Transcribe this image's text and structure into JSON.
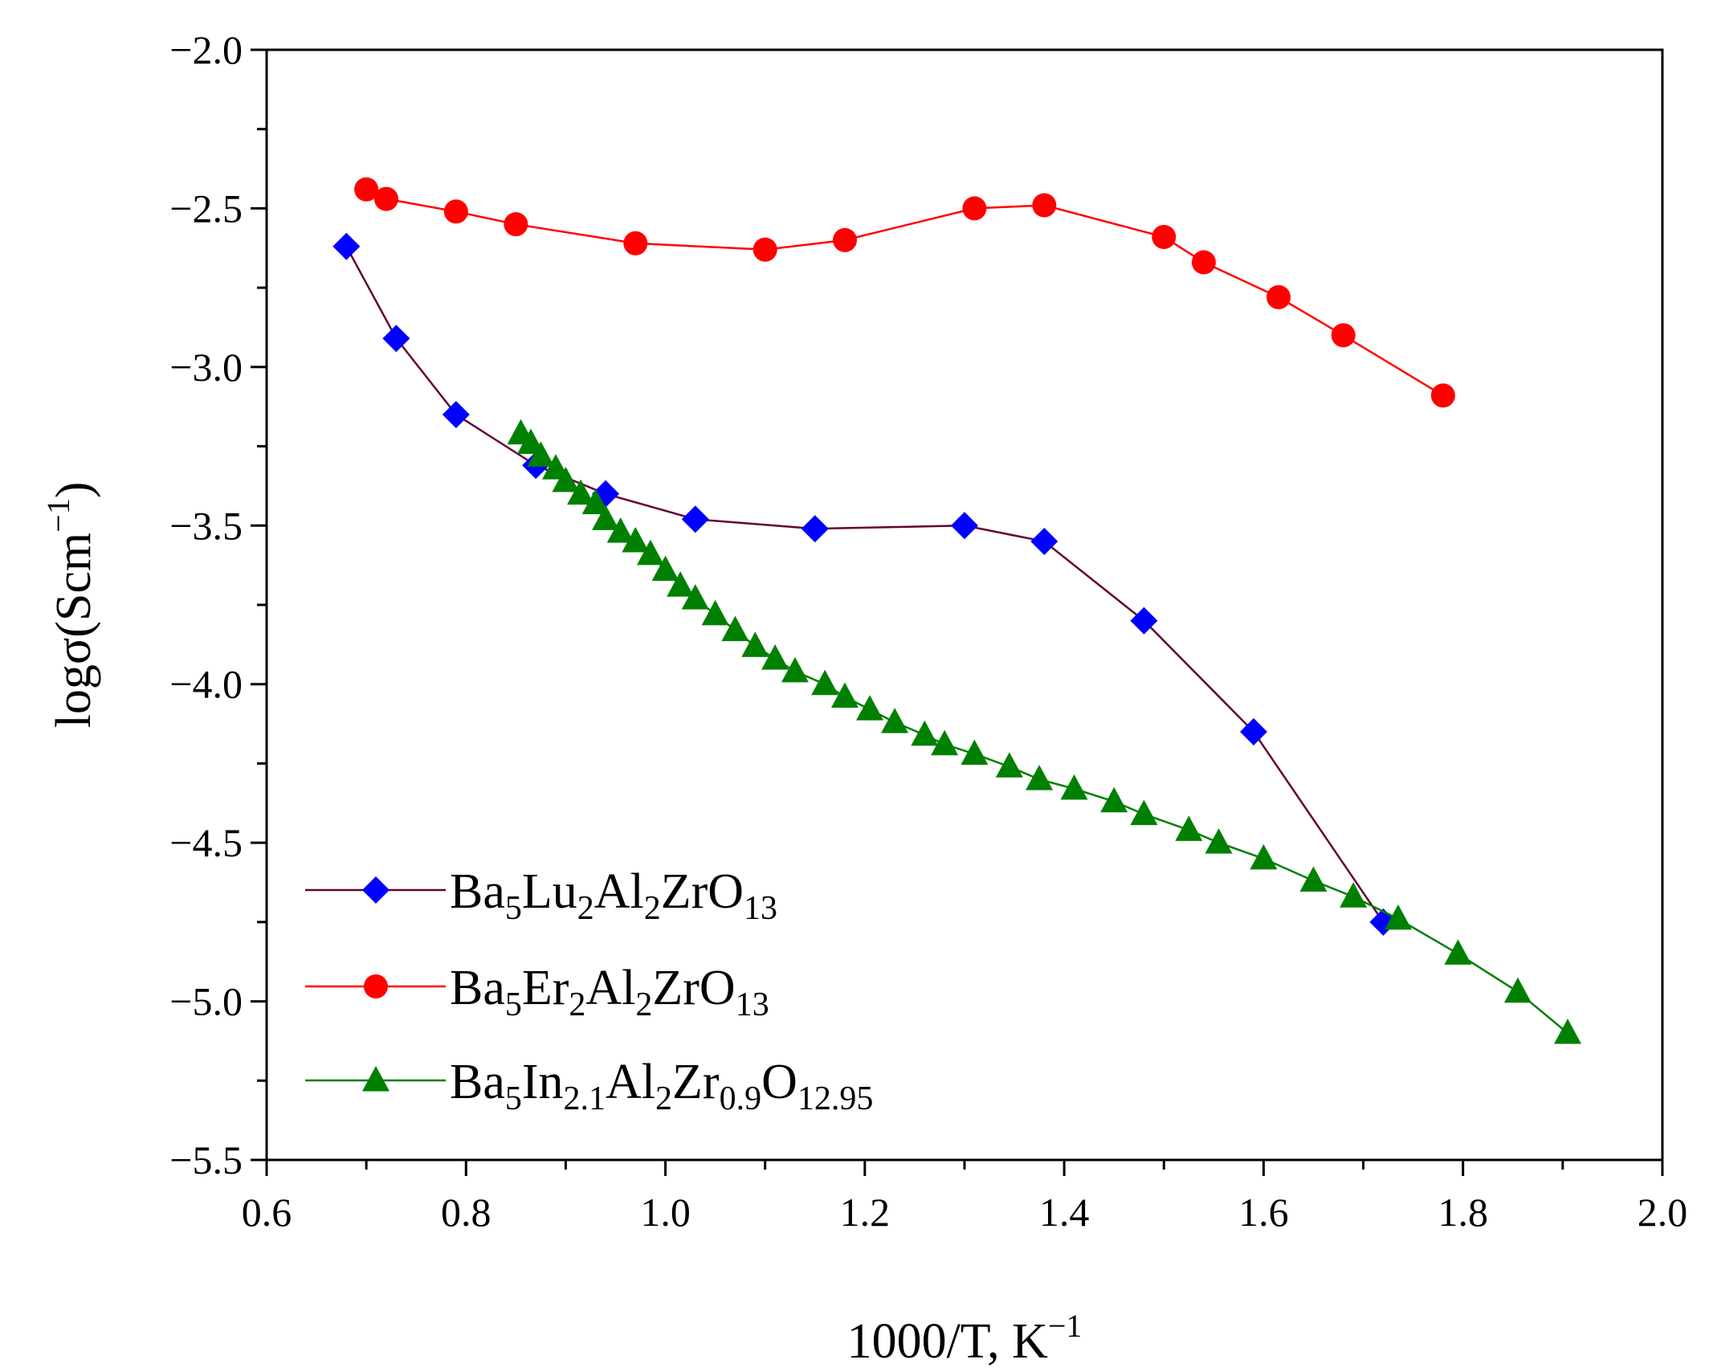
{
  "chart_data": {
    "type": "line",
    "xlabel": {
      "text": "1000/T, K",
      "sup": "−1"
    },
    "ylabel": {
      "text": "logσ(Scm",
      "sup": "−1",
      "close": ")"
    },
    "xlim": [
      0.6,
      2.0
    ],
    "ylim": [
      -5.5,
      -2.0
    ],
    "x_ticks": [
      0.6,
      0.8,
      1.0,
      1.2,
      1.4,
      1.6,
      1.8,
      2.0
    ],
    "x_tick_labels": [
      "0.6",
      "0.8",
      "1.0",
      "1.2",
      "1.4",
      "1.6",
      "1.8",
      "2.0"
    ],
    "y_ticks": [
      -2.0,
      -2.5,
      -3.0,
      -3.5,
      -4.0,
      -4.5,
      -5.0,
      -5.5
    ],
    "y_tick_labels": [
      "−2.0",
      "−2.5",
      "−3.0",
      "−3.5",
      "−4.0",
      "−4.5",
      "−5.0",
      "−5.5"
    ],
    "grid": false,
    "legend_position": "bottom-left",
    "series": [
      {
        "name": "Ba5Lu2Al2ZrO13",
        "name_parts": [
          [
            "Ba",
            ""
          ],
          [
            "5",
            "sub"
          ],
          [
            "Lu",
            ""
          ],
          [
            "2",
            "sub"
          ],
          [
            "Al",
            ""
          ],
          [
            "2",
            "sub"
          ],
          [
            "ZrO",
            ""
          ],
          [
            "13",
            "sub"
          ]
        ],
        "marker": "diamond",
        "marker_color": "#0000ff",
        "line_color": "#660033",
        "x": [
          0.68,
          0.73,
          0.79,
          0.87,
          0.94,
          1.03,
          1.15,
          1.3,
          1.38,
          1.48,
          1.59,
          1.72
        ],
        "y": [
          -2.62,
          -2.91,
          -3.15,
          -3.31,
          -3.4,
          -3.48,
          -3.51,
          -3.5,
          -3.55,
          -3.8,
          -4.15,
          -4.75
        ]
      },
      {
        "name": "Ba5Er2Al2ZrO13",
        "name_parts": [
          [
            "Ba",
            ""
          ],
          [
            "5",
            "sub"
          ],
          [
            "Er",
            ""
          ],
          [
            "2",
            "sub"
          ],
          [
            "Al",
            ""
          ],
          [
            "2",
            "sub"
          ],
          [
            "ZrO",
            ""
          ],
          [
            "13",
            "sub"
          ]
        ],
        "marker": "circle",
        "marker_color": "#ff0000",
        "line_color": "#ff0000",
        "x": [
          0.7,
          0.72,
          0.79,
          0.85,
          0.97,
          1.1,
          1.18,
          1.31,
          1.38,
          1.5,
          1.54,
          1.615,
          1.68,
          1.78
        ],
        "y": [
          -2.44,
          -2.47,
          -2.51,
          -2.55,
          -2.61,
          -2.63,
          -2.6,
          -2.5,
          -2.49,
          -2.59,
          -2.67,
          -2.78,
          -2.9,
          -3.09
        ]
      },
      {
        "name": "Ba5In2.1Al2Zr0.9O12.95",
        "name_parts": [
          [
            "Ba",
            ""
          ],
          [
            "5",
            "sub"
          ],
          [
            "In",
            ""
          ],
          [
            "2.1",
            "sub"
          ],
          [
            "Al",
            ""
          ],
          [
            "2",
            "sub"
          ],
          [
            "Zr",
            ""
          ],
          [
            "0.9",
            "sub"
          ],
          [
            "O",
            ""
          ],
          [
            "12.95",
            "sub"
          ]
        ],
        "marker": "triangle",
        "marker_color": "#008000",
        "line_color": "#008000",
        "x": [
          0.855,
          0.865,
          0.875,
          0.89,
          0.9,
          0.915,
          0.93,
          0.94,
          0.955,
          0.97,
          0.985,
          1.0,
          1.015,
          1.03,
          1.05,
          1.07,
          1.09,
          1.11,
          1.13,
          1.16,
          1.18,
          1.205,
          1.23,
          1.26,
          1.28,
          1.31,
          1.345,
          1.375,
          1.41,
          1.45,
          1.48,
          1.525,
          1.555,
          1.6,
          1.65,
          1.69,
          1.735,
          1.795,
          1.855,
          1.905
        ],
        "y": [
          -3.21,
          -3.24,
          -3.28,
          -3.32,
          -3.36,
          -3.4,
          -3.43,
          -3.48,
          -3.52,
          -3.55,
          -3.59,
          -3.64,
          -3.69,
          -3.73,
          -3.78,
          -3.83,
          -3.88,
          -3.92,
          -3.96,
          -4.0,
          -4.04,
          -4.08,
          -4.12,
          -4.16,
          -4.19,
          -4.22,
          -4.26,
          -4.3,
          -4.33,
          -4.37,
          -4.41,
          -4.46,
          -4.5,
          -4.55,
          -4.62,
          -4.67,
          -4.74,
          -4.85,
          -4.97,
          -5.1
        ]
      }
    ]
  }
}
